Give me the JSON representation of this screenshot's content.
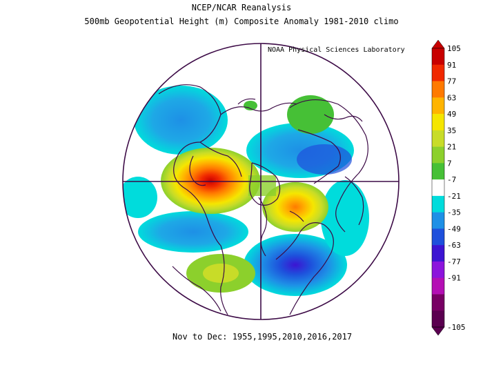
{
  "header": {
    "title_line1": "NCEP/NCAR Reanalysis",
    "title_line2": "500mb Geopotential Height (m) Composite Anomaly 1981-2010 climo",
    "credit": "NOAA Physical Sciences Laboratory"
  },
  "footer": {
    "period": "Nov to Dec: 1955,1995,2010,2016,2017"
  },
  "colorbar": {
    "levels": [
      105,
      91,
      77,
      63,
      49,
      35,
      21,
      7,
      -7,
      -21,
      -35,
      -49,
      -63,
      -77,
      -91,
      -105
    ],
    "colors": [
      "#c80000",
      "#f02800",
      "#ff7a00",
      "#ffb400",
      "#f5e600",
      "#c8dc28",
      "#8cd02c",
      "#46c036",
      "#ffffff",
      "#00dcdc",
      "#1e90e6",
      "#1e50dc",
      "#3c14d2",
      "#8c14dc",
      "#b40fb4",
      "#780064",
      "#5a0050"
    ]
  }
}
